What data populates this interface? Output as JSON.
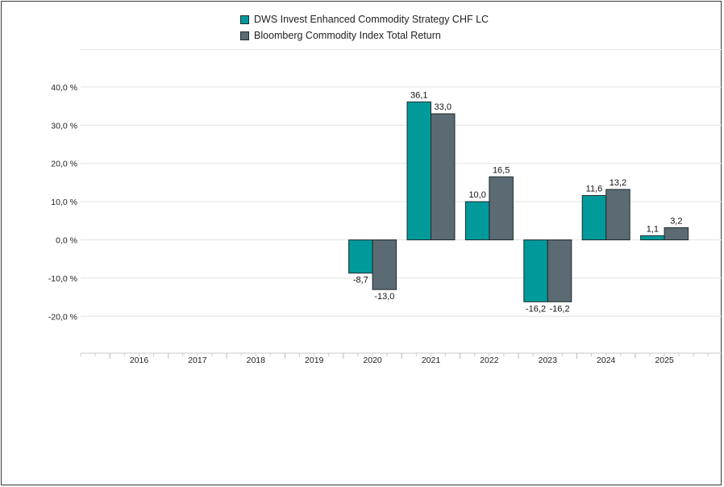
{
  "chart_data": {
    "type": "bar",
    "categories": [
      "2016",
      "2017",
      "2018",
      "2019",
      "2020",
      "2021",
      "2022",
      "2023",
      "2024",
      "2025"
    ],
    "series": [
      {
        "name": "DWS Invest Enhanced Commodity Strategy CHF LC",
        "color": "#009a9b",
        "values": [
          null,
          null,
          null,
          null,
          -8.7,
          36.1,
          10.0,
          -16.2,
          11.6,
          1.1
        ],
        "labels": [
          "",
          "",
          "",
          "",
          "-8,7",
          "36,1",
          "10,0",
          "-16,2",
          "11,6",
          "1,1"
        ]
      },
      {
        "name": "Bloomberg Commodity Index Total Return",
        "color": "#5b6a73",
        "values": [
          null,
          null,
          null,
          null,
          -13.0,
          33.0,
          16.5,
          -16.2,
          13.2,
          3.2
        ],
        "labels": [
          "",
          "",
          "",
          "",
          "-13,0",
          "33,0",
          "16,5",
          "-16,2",
          "13,2",
          "3,2"
        ]
      }
    ],
    "yticks": [
      40,
      30,
      20,
      10,
      0,
      -10,
      -20
    ],
    "ytick_labels": [
      "40,0 %",
      "30,0 %",
      "20,0 %",
      "10,0 %",
      "0,0 %",
      "-10,0 %",
      "-20,0 %"
    ],
    "ylim": [
      -30,
      40
    ],
    "grid": true,
    "legend_position": "top-center",
    "title": "",
    "xlabel": "",
    "ylabel": ""
  }
}
